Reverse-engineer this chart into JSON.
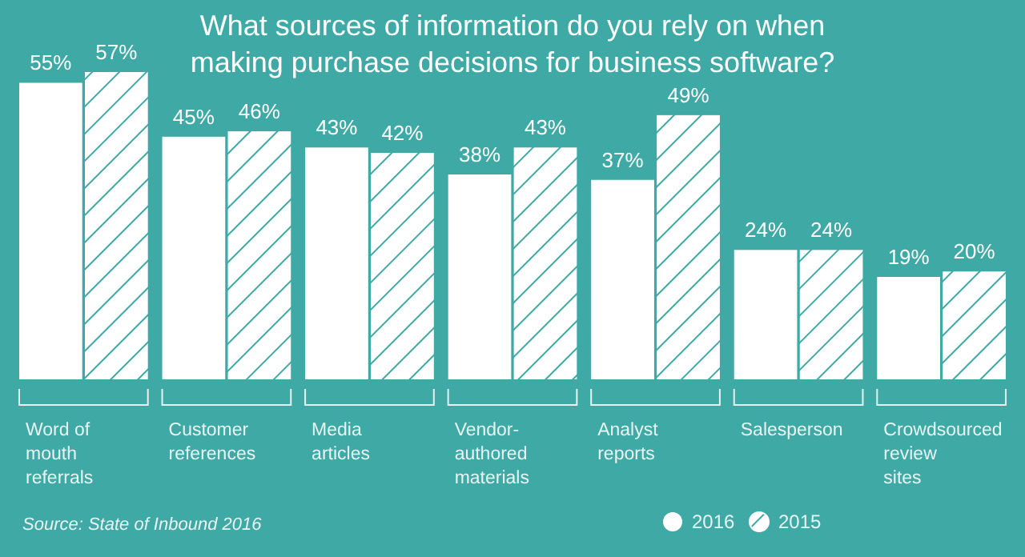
{
  "chart_data": {
    "type": "bar",
    "title": "What sources of information do you rely on when\nmaking purchase decisions for business software?",
    "categories": [
      "Word of\nmouth\nreferrals",
      "Customer\nreferences",
      "Media\narticles",
      "Vendor-\nauthored\nmaterials",
      "Analyst\nreports",
      "Salesperson",
      "Crowdsourced\nreview\nsites"
    ],
    "series": [
      {
        "name": "2016",
        "color": "#ffffff",
        "values": [
          55,
          45,
          43,
          38,
          37,
          24,
          19
        ],
        "value_labels": [
          "55%",
          "45%",
          "43%",
          "38%",
          "37%",
          "24%",
          "19%"
        ]
      },
      {
        "name": "2015",
        "color": "#ffffff",
        "values": [
          57,
          46,
          42,
          43,
          49,
          24,
          20
        ],
        "value_labels": [
          "57%",
          "46%",
          "42%",
          "43%",
          "49%",
          "24%",
          "20%"
        ]
      }
    ],
    "legend": "bottom right",
    "annotations": [
      "Source: State of Inbound 2016"
    ]
  }
}
